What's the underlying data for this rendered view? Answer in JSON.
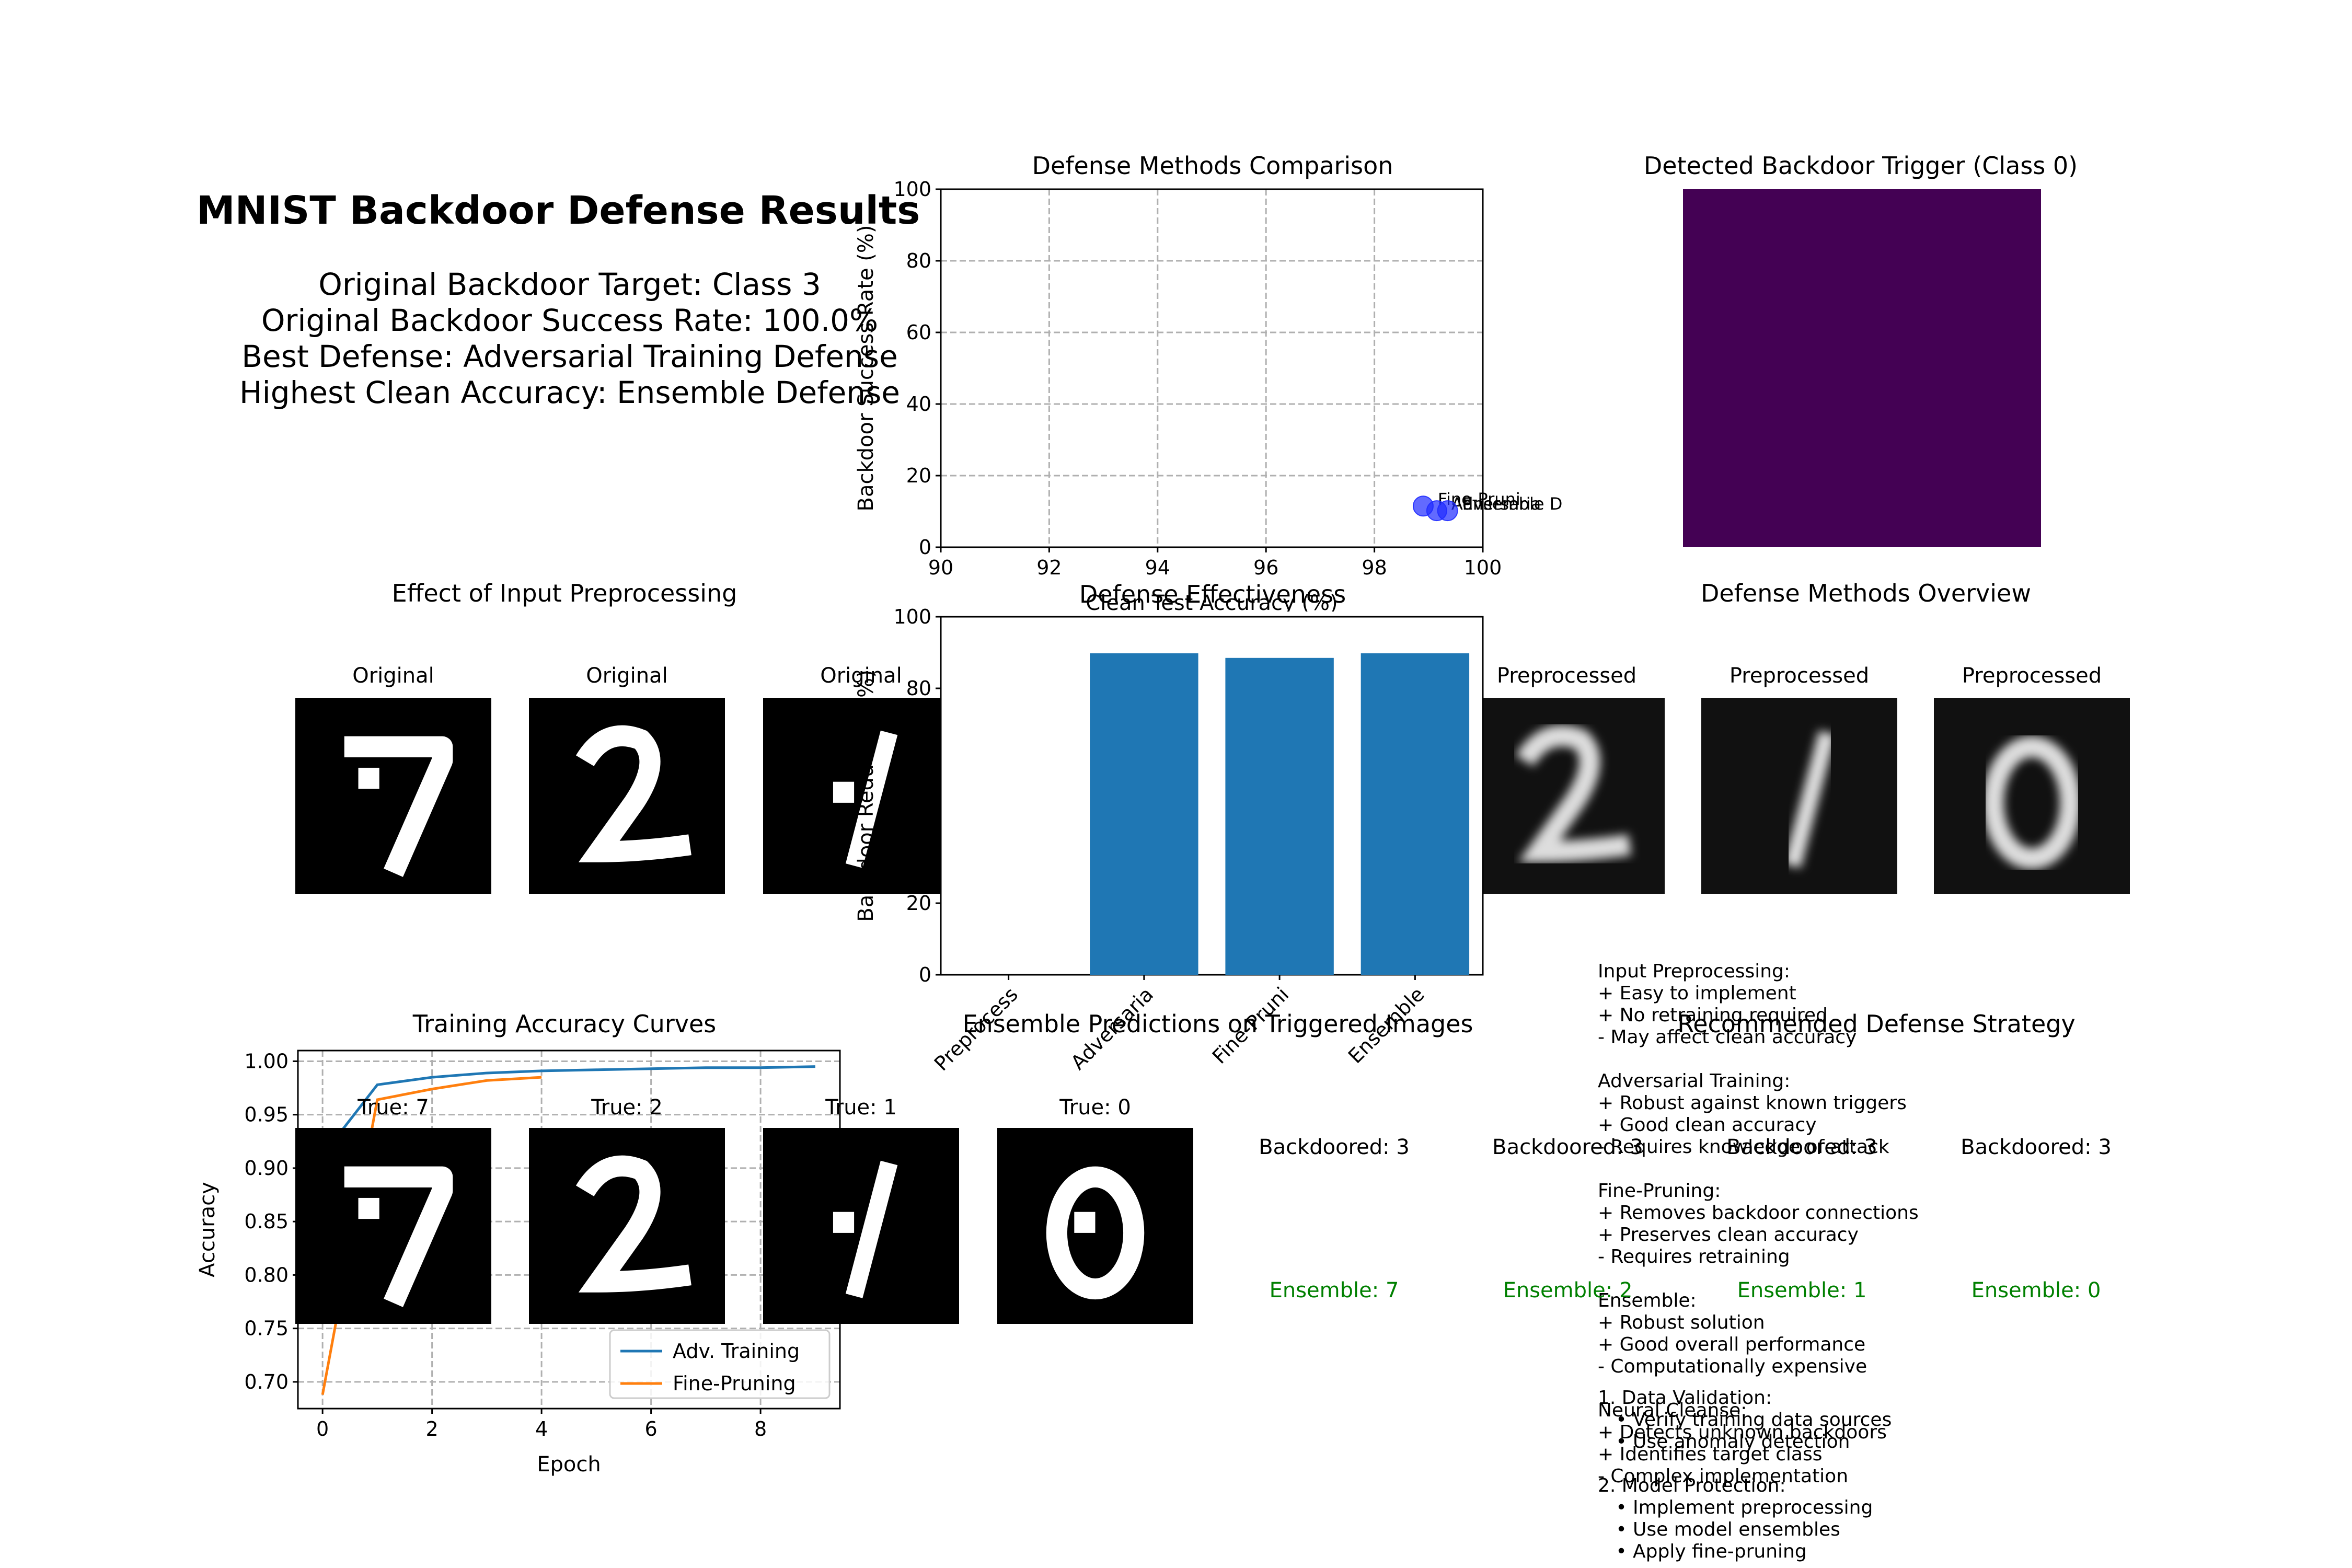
{
  "header": {
    "title": "MNIST Backdoor Defense Results",
    "lines": [
      "Original Backdoor Target: Class 3",
      "Original Backdoor Success Rate: 100.0%",
      "Best Defense: Adversarial Training Defense",
      "Highest Clean Accuracy: Ensemble Defense"
    ]
  },
  "chart_data": [
    {
      "type": "scatter",
      "title": "Defense Methods Comparison",
      "xlabel": "Clean Test Accuracy (%)",
      "ylabel": "Backdoor Success Rate (%)",
      "xlim": [
        90,
        100
      ],
      "ylim": [
        0,
        100
      ],
      "xticks": [
        90,
        92,
        94,
        96,
        98,
        100
      ],
      "yticks": [
        0,
        20,
        40,
        60,
        80,
        100
      ],
      "grid": true,
      "points": [
        {
          "x": 98.9,
          "y": 11.5,
          "label": "Fine-Pruni"
        },
        {
          "x": 99.15,
          "y": 10.2,
          "label": "Adversaria"
        },
        {
          "x": 99.35,
          "y": 10.2,
          "label": "Ensemble D"
        }
      ],
      "color": "#1f2bff"
    },
    {
      "type": "bar",
      "title": "Defense Effectiveness",
      "ylabel": "Backdoor Reduction (%)",
      "categories": [
        "Preprocess",
        "Adversaria",
        "Fine-Pruni",
        "Ensemble"
      ],
      "values": [
        0,
        89.8,
        88.5,
        89.8
      ],
      "ylim": [
        0,
        100
      ],
      "yticks": [
        0,
        20,
        40,
        60,
        80,
        100
      ],
      "color": "#1f77b4"
    },
    {
      "type": "line",
      "title": "Training Accuracy Curves",
      "xlabel": "Epoch",
      "ylabel": "Accuracy",
      "xlim": [
        -0.45,
        9.45
      ],
      "ylim": [
        0.675,
        1.01
      ],
      "xticks": [
        0,
        2,
        4,
        6,
        8
      ],
      "yticks": [
        0.7,
        0.75,
        0.8,
        0.85,
        0.9,
        0.95,
        1.0
      ],
      "grid": true,
      "legend": "lower-right",
      "series": [
        {
          "name": "Adv. Training",
          "color": "#1f77b4",
          "x": [
            0,
            1,
            2,
            3,
            4,
            5,
            6,
            7,
            8,
            9
          ],
          "values": [
            0.912,
            0.978,
            0.985,
            0.989,
            0.991,
            0.992,
            0.993,
            0.994,
            0.994,
            0.995
          ]
        },
        {
          "name": "Fine-Pruning",
          "color": "#ff7f0e",
          "x": [
            0,
            1,
            2,
            3,
            4
          ],
          "values": [
            0.688,
            0.964,
            0.974,
            0.982,
            0.985
          ]
        }
      ]
    }
  ],
  "trigger": {
    "title": "Detected Backdoor Trigger (Class 0)",
    "color": "#440154"
  },
  "preprocessing": {
    "title": "Effect of Input Preprocessing",
    "original_label": "Original",
    "preprocessed_label": "Preprocessed"
  },
  "overview": {
    "title": "Defense Methods Overview",
    "text": "Input Preprocessing:\n+ Easy to implement\n+ No retraining required\n- May affect clean accuracy\n\nAdversarial Training:\n+ Robust against known triggers\n+ Good clean accuracy\n- Requires knowledge of attack\n\nFine-Pruning:\n+ Removes backdoor connections\n+ Preserves clean accuracy\n- Requires retraining\n\nEnsemble:\n+ Robust solution\n+ Good overall performance\n- Computationally expensive\n\nNeural Cleanse:\n+ Detects unknown backdoors\n+ Identifies target class\n- Complex implementation"
  },
  "ensemble": {
    "title": "Ensemble Predictions on Triggered Images",
    "true_labels": [
      "True: 7",
      "True: 2",
      "True: 1",
      "True: 0"
    ],
    "backdoored_labels": [
      "Backdoored: 3",
      "Backdoored: 3",
      "Backdoored: 3",
      "Backdoored: 3"
    ],
    "ensemble_labels": [
      "Ensemble: 7",
      "Ensemble: 2",
      "Ensemble: 1",
      "Ensemble: 0"
    ],
    "ensemble_color": "#008000"
  },
  "strategy": {
    "title": "Recommended Defense Strategy",
    "text": "1. Data Validation:\n   • Verify training data sources\n   • Use anomaly detection\n\n2. Model Protection:\n   • Implement preprocessing\n   • Use model ensembles\n   • Apply fine-pruning"
  }
}
